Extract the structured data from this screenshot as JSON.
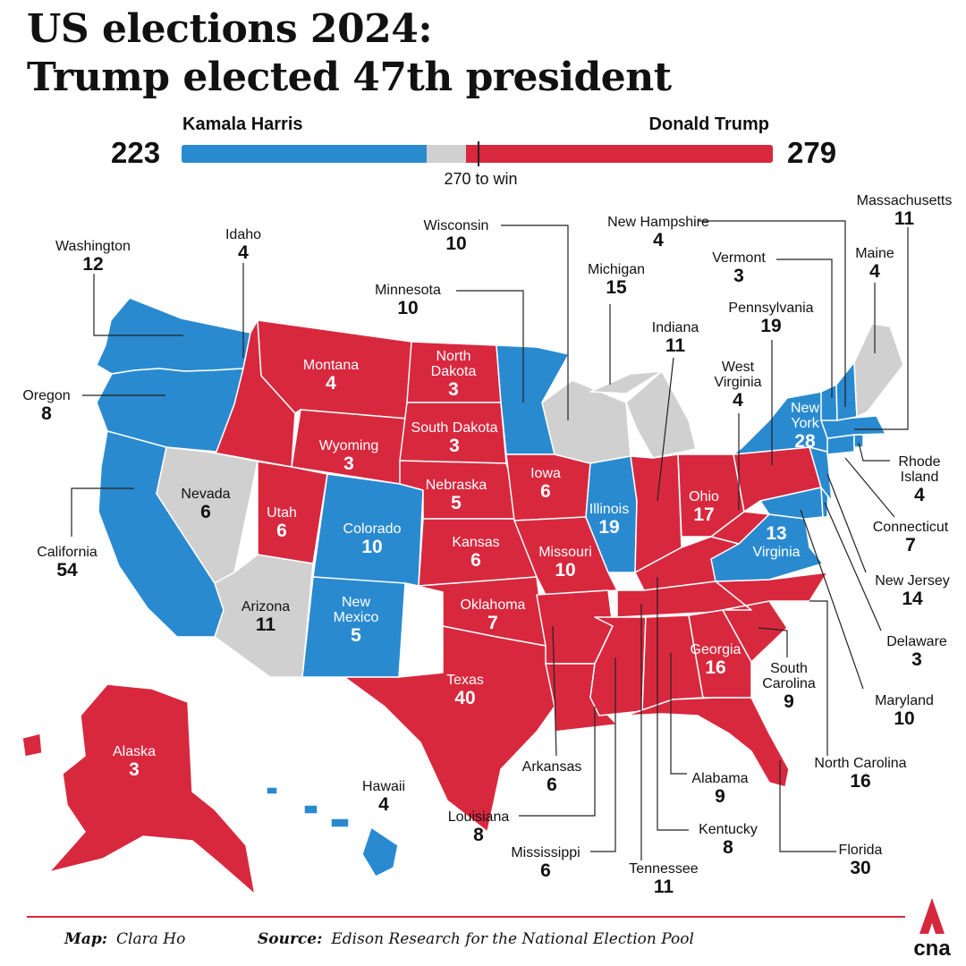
{
  "title": {
    "line1": "US elections 2024:",
    "line2": "Trump elected 47th president"
  },
  "result": {
    "harris": {
      "name": "Kamala Harris",
      "votes": 223,
      "votes_label": "223",
      "color": "#2a8ad0"
    },
    "trump": {
      "name": "Donald Trump",
      "votes": 279,
      "votes_label": "279",
      "color": "#d8283e"
    },
    "uncalled_color": "#d0d0d0",
    "threshold_label": "270 to win",
    "total_votes": 538
  },
  "states": [
    {
      "name": "Washington",
      "ev": "12",
      "winner": "harris"
    },
    {
      "name": "Oregon",
      "ev": "8",
      "winner": "harris"
    },
    {
      "name": "California",
      "ev": "54",
      "winner": "harris"
    },
    {
      "name": "Idaho",
      "ev": "4",
      "winner": "trump"
    },
    {
      "name": "Nevada",
      "ev": "6",
      "winner": "uncalled"
    },
    {
      "name": "Arizona",
      "ev": "11",
      "winner": "uncalled"
    },
    {
      "name": "Montana",
      "ev": "4",
      "winner": "trump"
    },
    {
      "name": "Wyoming",
      "ev": "3",
      "winner": "trump"
    },
    {
      "name": "Utah",
      "ev": "6",
      "winner": "trump"
    },
    {
      "name": "Colorado",
      "ev": "10",
      "winner": "harris"
    },
    {
      "name": "New Mexico",
      "ev": "5",
      "winner": "harris"
    },
    {
      "name": "North Dakota",
      "ev": "3",
      "winner": "trump"
    },
    {
      "name": "South Dakota",
      "ev": "3",
      "winner": "trump"
    },
    {
      "name": "Nebraska",
      "ev": "5",
      "winner": "trump"
    },
    {
      "name": "Kansas",
      "ev": "6",
      "winner": "trump"
    },
    {
      "name": "Oklahoma",
      "ev": "7",
      "winner": "trump"
    },
    {
      "name": "Texas",
      "ev": "40",
      "winner": "trump"
    },
    {
      "name": "Minnesota",
      "ev": "10",
      "winner": "harris"
    },
    {
      "name": "Iowa",
      "ev": "6",
      "winner": "trump"
    },
    {
      "name": "Missouri",
      "ev": "10",
      "winner": "trump"
    },
    {
      "name": "Arkansas",
      "ev": "6",
      "winner": "trump"
    },
    {
      "name": "Louisiana",
      "ev": "8",
      "winner": "trump"
    },
    {
      "name": "Wisconsin",
      "ev": "10",
      "winner": "uncalled"
    },
    {
      "name": "Illinois",
      "ev": "19",
      "winner": "harris"
    },
    {
      "name": "Michigan",
      "ev": "15",
      "winner": "uncalled"
    },
    {
      "name": "Indiana",
      "ev": "11",
      "winner": "trump"
    },
    {
      "name": "Ohio",
      "ev": "17",
      "winner": "trump"
    },
    {
      "name": "Kentucky",
      "ev": "8",
      "winner": "trump"
    },
    {
      "name": "Tennessee",
      "ev": "11",
      "winner": "trump"
    },
    {
      "name": "Mississippi",
      "ev": "6",
      "winner": "trump"
    },
    {
      "name": "Alabama",
      "ev": "9",
      "winner": "trump"
    },
    {
      "name": "Georgia",
      "ev": "16",
      "winner": "trump"
    },
    {
      "name": "Florida",
      "ev": "30",
      "winner": "trump"
    },
    {
      "name": "South Carolina",
      "ev": "9",
      "winner": "trump"
    },
    {
      "name": "North Carolina",
      "ev": "16",
      "winner": "trump"
    },
    {
      "name": "Virginia",
      "ev": "13",
      "winner": "harris"
    },
    {
      "name": "West Virginia",
      "ev": "4",
      "winner": "trump"
    },
    {
      "name": "Pennsylvania",
      "ev": "19",
      "winner": "trump"
    },
    {
      "name": "Maryland",
      "ev": "10",
      "winner": "harris"
    },
    {
      "name": "Delaware",
      "ev": "3",
      "winner": "harris"
    },
    {
      "name": "New Jersey",
      "ev": "14",
      "winner": "harris"
    },
    {
      "name": "New York",
      "ev": "28",
      "winner": "harris"
    },
    {
      "name": "Connecticut",
      "ev": "7",
      "winner": "harris"
    },
    {
      "name": "Rhode Island",
      "ev": "4",
      "winner": "harris"
    },
    {
      "name": "Massachusetts",
      "ev": "11",
      "winner": "harris"
    },
    {
      "name": "Vermont",
      "ev": "3",
      "winner": "harris"
    },
    {
      "name": "New Hampshire",
      "ev": "4",
      "winner": "harris"
    },
    {
      "name": "Maine",
      "ev": "4",
      "winner": "uncalled"
    },
    {
      "name": "Alaska",
      "ev": "3",
      "winner": "trump"
    },
    {
      "name": "Hawaii",
      "ev": "4",
      "winner": "harris"
    }
  ],
  "footer": {
    "map_label": "Map:",
    "map_credit": "Clara Ho",
    "source_label": "Source:",
    "source_credit": "Edison Research for the National Election Pool",
    "logo_text": "cna"
  }
}
